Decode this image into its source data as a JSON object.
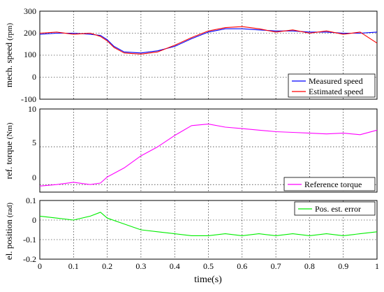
{
  "chart_data": [
    {
      "type": "line",
      "ylabel": "mech. speed",
      "yunit": "(rpm)",
      "xlim": [
        0,
        1
      ],
      "ylim": [
        -100,
        300
      ],
      "yticks": [
        "-100",
        "0",
        "100",
        "200",
        "300"
      ],
      "grid": true,
      "legend_position": "bottom-right",
      "series": [
        {
          "name": "Measured speed",
          "color": "#0000ff",
          "x": [
            0,
            0.05,
            0.1,
            0.15,
            0.18,
            0.2,
            0.22,
            0.25,
            0.3,
            0.35,
            0.4,
            0.45,
            0.5,
            0.55,
            0.6,
            0.65,
            0.7,
            0.75,
            0.8,
            0.85,
            0.9,
            0.95,
            1.0
          ],
          "y": [
            195,
            200,
            200,
            195,
            190,
            170,
            140,
            115,
            110,
            120,
            140,
            175,
            205,
            220,
            220,
            215,
            210,
            210,
            205,
            205,
            200,
            200,
            205
          ]
        },
        {
          "name": "Estimated speed",
          "color": "#ff0000",
          "x": [
            0,
            0.05,
            0.1,
            0.15,
            0.18,
            0.2,
            0.22,
            0.25,
            0.3,
            0.35,
            0.4,
            0.45,
            0.5,
            0.55,
            0.6,
            0.65,
            0.7,
            0.75,
            0.8,
            0.85,
            0.9,
            0.95,
            1.0
          ],
          "y": [
            200,
            205,
            195,
            200,
            185,
            165,
            135,
            110,
            105,
            115,
            145,
            180,
            210,
            225,
            230,
            220,
            205,
            215,
            200,
            210,
            195,
            205,
            155
          ]
        }
      ]
    },
    {
      "type": "line",
      "ylabel": "ref. torque",
      "yunit": "(Nm)",
      "xlim": [
        0,
        1
      ],
      "ylim": [
        -1,
        10
      ],
      "yticks": [
        "0",
        "5",
        "10"
      ],
      "grid": true,
      "legend_position": "bottom-right",
      "series": [
        {
          "name": "Reference torque",
          "color": "#ff00ff",
          "x": [
            0,
            0.05,
            0.1,
            0.15,
            0.18,
            0.2,
            0.25,
            0.3,
            0.35,
            0.4,
            0.45,
            0.5,
            0.55,
            0.6,
            0.65,
            0.7,
            0.75,
            0.8,
            0.85,
            0.9,
            0.95,
            1.0
          ],
          "y": [
            -0.2,
            0,
            0.3,
            0,
            0.2,
            1.0,
            2.2,
            3.8,
            5.0,
            6.5,
            7.8,
            8.0,
            7.6,
            7.4,
            7.2,
            7.0,
            6.9,
            6.8,
            6.7,
            6.8,
            6.6,
            7.2
          ]
        }
      ]
    },
    {
      "type": "line",
      "ylabel": "el. position",
      "yunit": "(rad)",
      "xlabel": "time(s)",
      "xlim": [
        0,
        1
      ],
      "ylim": [
        -0.2,
        0.1
      ],
      "yticks": [
        "-0.2",
        "-0.1",
        "0",
        "0.1"
      ],
      "xticks": [
        "0",
        "0.1",
        "0.2",
        "0.3",
        "0.4",
        "0.5",
        "0.6",
        "0.7",
        "0.8",
        "0.9",
        "1"
      ],
      "grid": true,
      "legend_position": "top-right",
      "series": [
        {
          "name": "Pos. est. error",
          "color": "#00ee00",
          "x": [
            0,
            0.05,
            0.1,
            0.15,
            0.18,
            0.2,
            0.25,
            0.3,
            0.35,
            0.4,
            0.45,
            0.5,
            0.55,
            0.6,
            0.65,
            0.7,
            0.75,
            0.8,
            0.85,
            0.9,
            0.95,
            1.0
          ],
          "y": [
            0.02,
            0.01,
            0.0,
            0.02,
            0.04,
            0.01,
            -0.02,
            -0.05,
            -0.06,
            -0.07,
            -0.08,
            -0.08,
            -0.07,
            -0.08,
            -0.07,
            -0.08,
            -0.07,
            -0.08,
            -0.07,
            -0.08,
            -0.07,
            -0.06
          ]
        }
      ]
    }
  ]
}
